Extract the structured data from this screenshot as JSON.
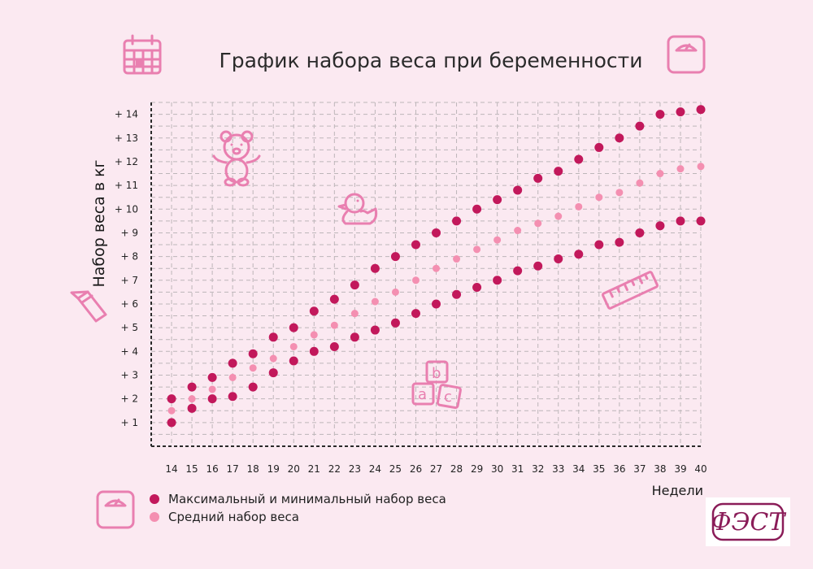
{
  "chart_data": {
    "type": "scatter",
    "title": "График набора веса при беременности",
    "ylabel": "Набор веса в кг",
    "xlabel": "Недели",
    "x": [
      14,
      15,
      16,
      17,
      18,
      19,
      20,
      21,
      22,
      23,
      24,
      25,
      26,
      27,
      28,
      29,
      30,
      31,
      32,
      33,
      34,
      35,
      36,
      37,
      38,
      39,
      40
    ],
    "x_tick_labels": [
      "14",
      "15",
      "16",
      "17",
      "18",
      "19",
      "20",
      "21",
      "22",
      "23",
      "24",
      "25",
      "26",
      "27",
      "28",
      "29",
      "30",
      "31",
      "32",
      "33",
      "34",
      "35",
      "36",
      "37",
      "38",
      "39",
      "40"
    ],
    "y_tick_labels": [
      "+ 1",
      "+ 2",
      "+ 3",
      "+ 4",
      "+ 5",
      "+ 6",
      "+ 7",
      "+ 8",
      "+ 9",
      "+ 10",
      "+ 11",
      "+ 12",
      "+ 13",
      "+ 14"
    ],
    "y_ticks": [
      1,
      2,
      3,
      4,
      5,
      6,
      7,
      8,
      9,
      10,
      11,
      12,
      13,
      14
    ],
    "xlim": [
      13,
      40
    ],
    "ylim": [
      0,
      14.5
    ],
    "grid": true,
    "series": [
      {
        "name": "Максимальный и минимальный набор веса",
        "color": "#c2185b",
        "values_max": [
          2.0,
          2.5,
          2.9,
          3.5,
          3.9,
          4.6,
          5.0,
          5.7,
          6.2,
          6.8,
          7.5,
          8.0,
          8.5,
          9.0,
          9.5,
          10.0,
          10.4,
          10.8,
          11.3,
          11.6,
          12.1,
          12.6,
          13.0,
          13.5,
          14.0,
          14.1,
          14.2
        ],
        "values_min": [
          1.0,
          1.6,
          2.0,
          2.1,
          2.5,
          3.1,
          3.6,
          4.0,
          4.2,
          4.6,
          4.9,
          5.2,
          5.6,
          6.0,
          6.4,
          6.7,
          7.0,
          7.4,
          7.6,
          7.9,
          8.1,
          8.5,
          8.6,
          9.0,
          9.3,
          9.5,
          9.5
        ]
      },
      {
        "name": "Средний набор веса",
        "color": "#f48fb1",
        "values": [
          1.5,
          2.0,
          2.4,
          2.9,
          3.3,
          3.7,
          4.2,
          4.7,
          5.1,
          5.6,
          6.1,
          6.5,
          7.0,
          7.5,
          7.9,
          8.3,
          8.7,
          9.1,
          9.4,
          9.7,
          10.1,
          10.5,
          10.7,
          11.1,
          11.5,
          11.7,
          11.8
        ]
      }
    ],
    "legend_placement": "bottom-left"
  },
  "icons": [
    "calendar-icon",
    "scale-icon",
    "teddy-bear-icon",
    "duck-icon",
    "pencil-icon",
    "ruler-icon",
    "abc-blocks-icon",
    "scale-icon"
  ],
  "logo": {
    "text": "ФЭСТ"
  }
}
